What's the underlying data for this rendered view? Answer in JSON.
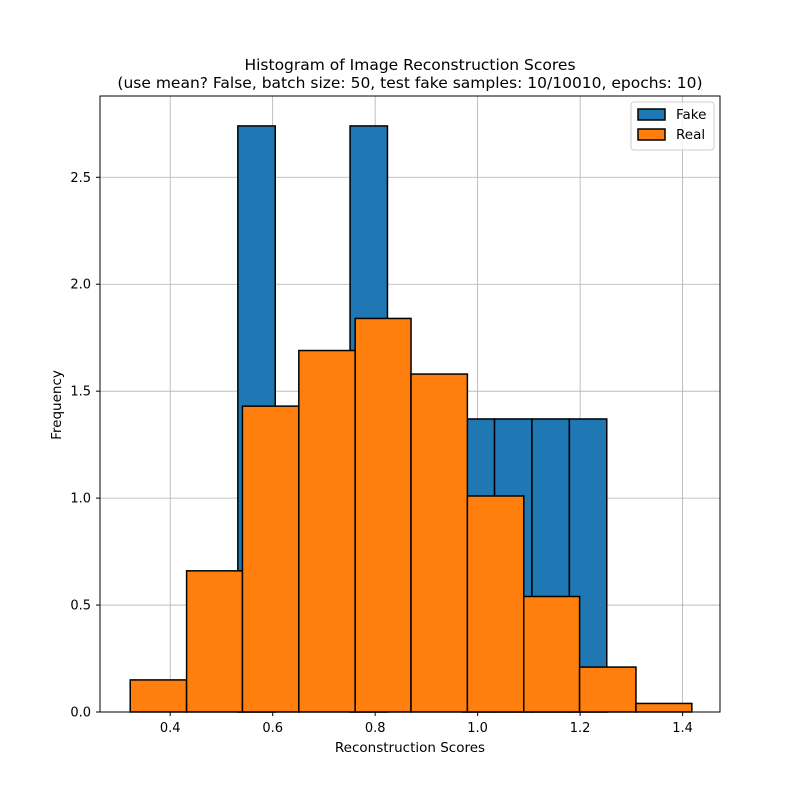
{
  "chart_data": {
    "type": "bar",
    "title": "Histogram of Image Reconstruction Scores",
    "subtitle": "(use mean? False, batch size: 50, test fake samples: 10/10010, epochs: 10)",
    "xlabel": "Reconstruction Scores",
    "ylabel": "Frequency",
    "xlim": [
      0.263,
      1.473
    ],
    "ylim": [
      0,
      2.88
    ],
    "x_ticks": [
      0.4,
      0.6,
      0.8,
      1.0,
      1.2,
      1.4
    ],
    "x_tick_labels": [
      "0.4",
      "0.6",
      "0.8",
      "1.0",
      "1.2",
      "1.4"
    ],
    "y_ticks": [
      0.0,
      0.5,
      1.0,
      1.5,
      2.0,
      2.5
    ],
    "y_tick_labels": [
      "0.0",
      "0.5",
      "1.0",
      "1.5",
      "2.0",
      "2.5"
    ],
    "grid": true,
    "legend_position": "top-right",
    "series": [
      {
        "name": "Fake",
        "color": "#1f77b4",
        "bins": [
          {
            "x0": 0.532,
            "x1": 0.605,
            "value": 2.74
          },
          {
            "x0": 0.605,
            "x1": 0.678,
            "value": 0.0
          },
          {
            "x0": 0.678,
            "x1": 0.751,
            "value": 0.0
          },
          {
            "x0": 0.751,
            "x1": 0.824,
            "value": 2.74
          },
          {
            "x0": 0.824,
            "x1": 0.897,
            "value": 0.0
          },
          {
            "x0": 0.897,
            "x1": 0.97,
            "value": 0.0
          },
          {
            "x0": 0.97,
            "x1": 1.033,
            "value": 1.37
          },
          {
            "x0": 1.033,
            "x1": 1.106,
            "value": 1.37
          },
          {
            "x0": 1.106,
            "x1": 1.179,
            "value": 1.37
          },
          {
            "x0": 1.179,
            "x1": 1.252,
            "value": 1.37
          }
        ]
      },
      {
        "name": "Real",
        "color": "#ff7f0e",
        "bins": [
          {
            "x0": 0.322,
            "x1": 0.432,
            "value": 0.15
          },
          {
            "x0": 0.432,
            "x1": 0.541,
            "value": 0.66
          },
          {
            "x0": 0.541,
            "x1": 0.651,
            "value": 1.43
          },
          {
            "x0": 0.651,
            "x1": 0.761,
            "value": 1.69
          },
          {
            "x0": 0.761,
            "x1": 0.87,
            "value": 1.84
          },
          {
            "x0": 0.87,
            "x1": 0.98,
            "value": 1.58
          },
          {
            "x0": 0.98,
            "x1": 1.09,
            "value": 1.01
          },
          {
            "x0": 1.09,
            "x1": 1.199,
            "value": 0.54
          },
          {
            "x0": 1.199,
            "x1": 1.309,
            "value": 0.21
          },
          {
            "x0": 1.309,
            "x1": 1.418,
            "value": 0.04
          }
        ]
      }
    ]
  }
}
